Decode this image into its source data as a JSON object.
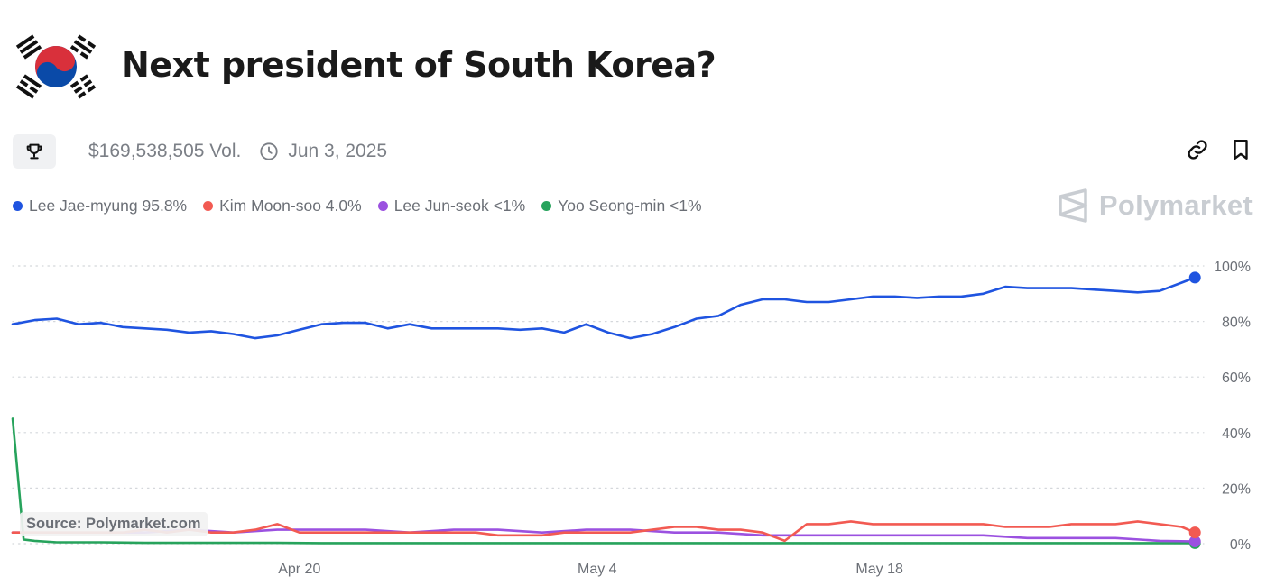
{
  "header": {
    "title": "Next president of South Korea?",
    "flag_icon": "south-korea-flag-icon"
  },
  "meta": {
    "trophy_icon": "trophy-icon",
    "volume": "$169,538,505 Vol.",
    "clock_icon": "clock-icon",
    "end_date": "Jun 3, 2025"
  },
  "actions": {
    "link_icon": "link-icon",
    "bookmark_icon": "bookmark-icon"
  },
  "brand": {
    "name": "Polymarket",
    "icon": "polymarket-logo-icon"
  },
  "source_label": "Source: Polymarket.com",
  "chart_data": {
    "type": "line",
    "title": "",
    "xlabel": "",
    "ylabel": "",
    "x_ticks": [
      "Apr 20",
      "May 4",
      "May 18"
    ],
    "y_ticks": [
      "100%",
      "80%",
      "60%",
      "40%",
      "20%",
      "0%"
    ],
    "ylim": [
      0,
      100
    ],
    "x_range_days": [
      0,
      54
    ],
    "grid": true,
    "legend_position": "top-left",
    "series": [
      {
        "name": "Lee Jae-myung",
        "legend": "Lee Jae-myung 95.8%",
        "color": "#1f54e0",
        "points": [
          [
            0,
            79
          ],
          [
            1,
            80.5
          ],
          [
            2,
            81
          ],
          [
            3,
            79
          ],
          [
            4,
            79.5
          ],
          [
            5,
            78
          ],
          [
            6,
            77.5
          ],
          [
            7,
            77
          ],
          [
            8,
            76
          ],
          [
            9,
            76.5
          ],
          [
            10,
            75.5
          ],
          [
            11,
            74
          ],
          [
            12,
            75
          ],
          [
            13,
            77
          ],
          [
            14,
            79
          ],
          [
            15,
            79.5
          ],
          [
            16,
            79.5
          ],
          [
            17,
            77.5
          ],
          [
            18,
            79
          ],
          [
            19,
            77.5
          ],
          [
            20,
            77.5
          ],
          [
            21,
            77.5
          ],
          [
            22,
            77.5
          ],
          [
            23,
            77
          ],
          [
            24,
            77.5
          ],
          [
            25,
            76
          ],
          [
            26,
            79
          ],
          [
            27,
            76
          ],
          [
            28,
            74
          ],
          [
            29,
            75.5
          ],
          [
            30,
            78
          ],
          [
            31,
            81
          ],
          [
            32,
            82
          ],
          [
            33,
            86
          ],
          [
            34,
            88
          ],
          [
            35,
            88
          ],
          [
            36,
            87
          ],
          [
            37,
            87
          ],
          [
            38,
            88
          ],
          [
            39,
            89
          ],
          [
            40,
            89
          ],
          [
            41,
            88.5
          ],
          [
            42,
            89
          ],
          [
            43,
            89
          ],
          [
            44,
            90
          ],
          [
            45,
            92.5
          ],
          [
            46,
            92
          ],
          [
            47,
            92
          ],
          [
            48,
            92
          ],
          [
            49,
            91.5
          ],
          [
            50,
            91
          ],
          [
            51,
            90.5
          ],
          [
            52,
            91
          ],
          [
            53,
            94
          ],
          [
            53.6,
            95.8
          ]
        ]
      },
      {
        "name": "Kim Moon-soo",
        "legend": "Kim Moon-soo 4.0%",
        "color": "#f25a52",
        "points": [
          [
            0,
            4
          ],
          [
            1,
            4
          ],
          [
            2,
            4
          ],
          [
            3,
            4
          ],
          [
            4,
            4
          ],
          [
            5,
            4
          ],
          [
            6,
            5
          ],
          [
            7,
            4
          ],
          [
            8,
            5
          ],
          [
            9,
            4
          ],
          [
            10,
            4
          ],
          [
            11,
            5
          ],
          [
            12,
            7
          ],
          [
            13,
            4
          ],
          [
            14,
            4
          ],
          [
            15,
            4
          ],
          [
            16,
            4
          ],
          [
            17,
            4
          ],
          [
            18,
            4
          ],
          [
            19,
            4
          ],
          [
            20,
            4
          ],
          [
            21,
            4
          ],
          [
            22,
            3
          ],
          [
            23,
            3
          ],
          [
            24,
            3
          ],
          [
            25,
            4
          ],
          [
            26,
            4
          ],
          [
            27,
            4
          ],
          [
            28,
            4
          ],
          [
            29,
            5
          ],
          [
            30,
            6
          ],
          [
            31,
            6
          ],
          [
            32,
            5
          ],
          [
            33,
            5
          ],
          [
            34,
            4
          ],
          [
            35,
            1
          ],
          [
            36,
            7
          ],
          [
            37,
            7
          ],
          [
            38,
            8
          ],
          [
            39,
            7
          ],
          [
            40,
            7
          ],
          [
            41,
            7
          ],
          [
            42,
            7
          ],
          [
            43,
            7
          ],
          [
            44,
            7
          ],
          [
            45,
            6
          ],
          [
            46,
            6
          ],
          [
            47,
            6
          ],
          [
            48,
            7
          ],
          [
            49,
            7
          ],
          [
            50,
            7
          ],
          [
            51,
            8
          ],
          [
            52,
            7
          ],
          [
            53,
            6
          ],
          [
            53.6,
            4
          ]
        ]
      },
      {
        "name": "Lee Jun-seok",
        "legend": "Lee Jun-seok <1%",
        "color": "#9b51e0",
        "points": [
          [
            0,
            4
          ],
          [
            2,
            4
          ],
          [
            4,
            4
          ],
          [
            6,
            4
          ],
          [
            8,
            5
          ],
          [
            10,
            4
          ],
          [
            12,
            5
          ],
          [
            14,
            5
          ],
          [
            16,
            5
          ],
          [
            18,
            4
          ],
          [
            20,
            5
          ],
          [
            22,
            5
          ],
          [
            24,
            4
          ],
          [
            26,
            5
          ],
          [
            28,
            5
          ],
          [
            30,
            4
          ],
          [
            32,
            4
          ],
          [
            34,
            3
          ],
          [
            36,
            3
          ],
          [
            38,
            3
          ],
          [
            40,
            3
          ],
          [
            42,
            3
          ],
          [
            44,
            3
          ],
          [
            46,
            2
          ],
          [
            48,
            2
          ],
          [
            50,
            2
          ],
          [
            52,
            1
          ],
          [
            53.6,
            0.8
          ]
        ]
      },
      {
        "name": "Yoo Seong-min",
        "legend": "Yoo Seong-min <1%",
        "color": "#27a35c",
        "points": [
          [
            0,
            45
          ],
          [
            0.5,
            1.5
          ],
          [
            1,
            1
          ],
          [
            2,
            0.5
          ],
          [
            3,
            0.5
          ],
          [
            4,
            0.5
          ],
          [
            6,
            0.3
          ],
          [
            8,
            0.3
          ],
          [
            10,
            0.3
          ],
          [
            12,
            0.3
          ],
          [
            14,
            0.2
          ],
          [
            20,
            0.2
          ],
          [
            30,
            0.2
          ],
          [
            40,
            0.2
          ],
          [
            50,
            0.2
          ],
          [
            53.6,
            0.2
          ]
        ]
      }
    ]
  }
}
